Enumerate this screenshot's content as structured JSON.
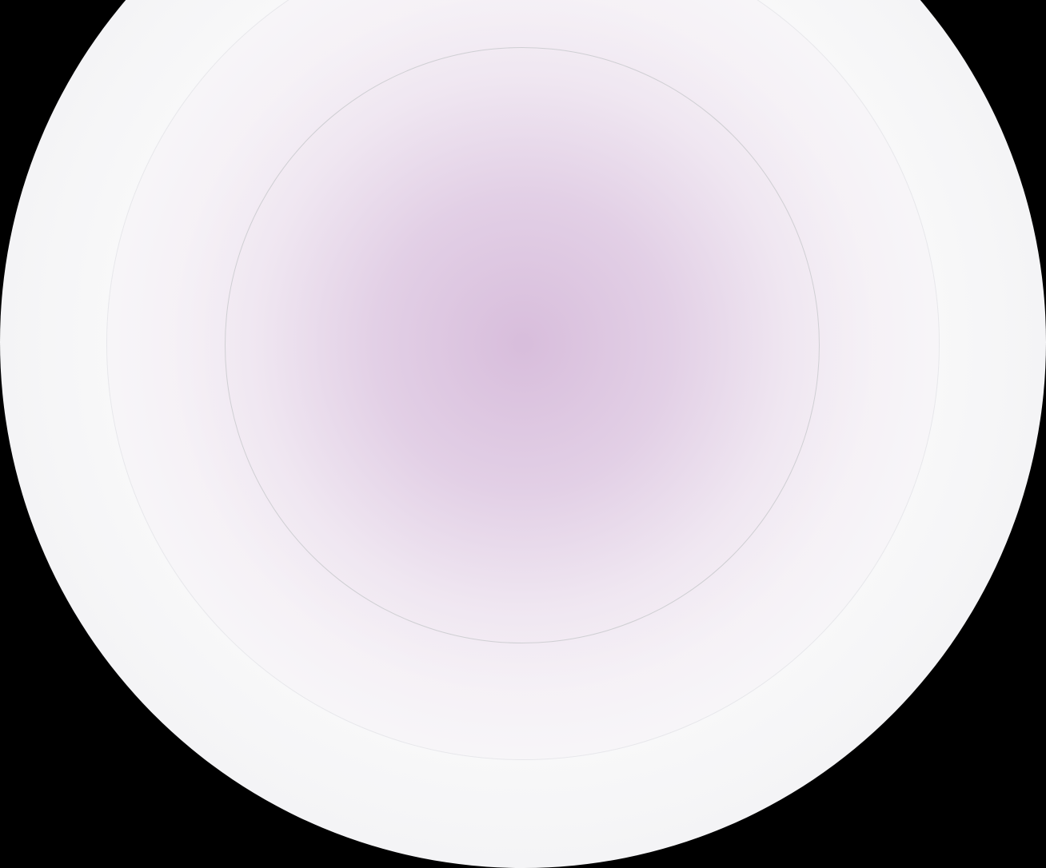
{
  "colors": {
    "background": "#000000",
    "outer_disc": "#f8f8f9",
    "glow_center": "#d7bbdc",
    "ring": "#cfcfd3"
  }
}
